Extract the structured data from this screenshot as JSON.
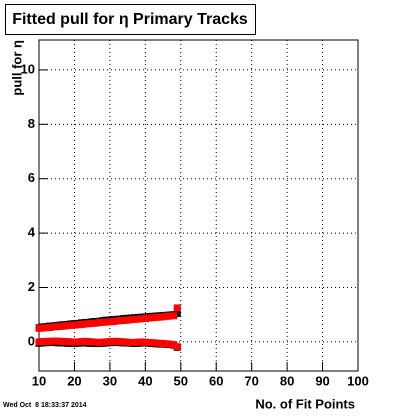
{
  "chart_data": {
    "type": "scatter",
    "title": "Fitted pull for η Primary Tracks",
    "x_label": "No. of Fit Points",
    "y_label": "pull for η",
    "timestamp": "Wed Oct  8 18:33:37 2014",
    "x": [
      10,
      11,
      12,
      13,
      14,
      15,
      16,
      17,
      18,
      19,
      20,
      21,
      22,
      23,
      24,
      25,
      26,
      27,
      28,
      29,
      30,
      31,
      32,
      33,
      34,
      35,
      36,
      37,
      38,
      39,
      40,
      41,
      42,
      43,
      44,
      45,
      46,
      47,
      48,
      49
    ],
    "series": [
      {
        "color": "#000000",
        "values": [
          0.52,
          0.55,
          0.56,
          0.58,
          0.59,
          0.6,
          0.62,
          0.63,
          0.64,
          0.66,
          0.67,
          0.68,
          0.7,
          0.71,
          0.72,
          0.74,
          0.75,
          0.76,
          0.78,
          0.8,
          0.8,
          0.82,
          0.83,
          0.84,
          0.86,
          0.87,
          0.88,
          0.89,
          0.9,
          0.91,
          0.92,
          0.93,
          0.94,
          0.95,
          0.96,
          0.97,
          0.98,
          0.99,
          1.0,
          1.05
        ]
      },
      {
        "color": "#000000",
        "values": [
          -0.05,
          -0.04,
          -0.03,
          -0.02,
          -0.02,
          -0.03,
          -0.04,
          -0.04,
          -0.05,
          -0.05,
          -0.06,
          -0.05,
          -0.04,
          -0.04,
          -0.05,
          -0.05,
          -0.06,
          -0.06,
          -0.05,
          -0.04,
          -0.03,
          -0.02,
          -0.02,
          -0.03,
          -0.04,
          -0.04,
          -0.05,
          -0.06,
          -0.05,
          -0.04,
          -0.04,
          -0.05,
          -0.06,
          -0.07,
          -0.08,
          -0.08,
          -0.09,
          -0.1,
          -0.12,
          -0.2
        ]
      },
      {
        "color": "#ff0000",
        "values": [
          0.5,
          0.51,
          0.52,
          0.53,
          0.55,
          0.56,
          0.57,
          0.58,
          0.6,
          0.61,
          0.62,
          0.63,
          0.64,
          0.66,
          0.67,
          0.68,
          0.69,
          0.71,
          0.72,
          0.73,
          0.74,
          0.75,
          0.77,
          0.78,
          0.79,
          0.8,
          0.82,
          0.83,
          0.84,
          0.85,
          0.86,
          0.88,
          0.89,
          0.9,
          0.91,
          0.92,
          0.94,
          0.95,
          0.96,
          1.25
        ]
      },
      {
        "color": "#ff0000",
        "values": [
          0.0,
          0.01,
          0.02,
          0.02,
          0.03,
          0.03,
          0.02,
          0.02,
          0.01,
          0.0,
          -0.01,
          0.0,
          0.01,
          0.02,
          0.01,
          0.0,
          -0.01,
          -0.02,
          -0.01,
          0.0,
          0.01,
          0.02,
          0.02,
          0.01,
          0.0,
          -0.01,
          -0.02,
          -0.02,
          -0.01,
          0.0,
          -0.01,
          -0.02,
          -0.03,
          -0.04,
          -0.05,
          -0.06,
          -0.07,
          -0.08,
          -0.1,
          -0.18
        ]
      }
    ],
    "xlim": [
      10,
      100
    ],
    "xticks": [
      10,
      20,
      30,
      40,
      50,
      60,
      70,
      80,
      90,
      100
    ],
    "ylim": [
      -1.07,
      11.1
    ],
    "yticks": [
      0,
      2,
      4,
      6,
      8,
      10
    ],
    "grid": true
  }
}
